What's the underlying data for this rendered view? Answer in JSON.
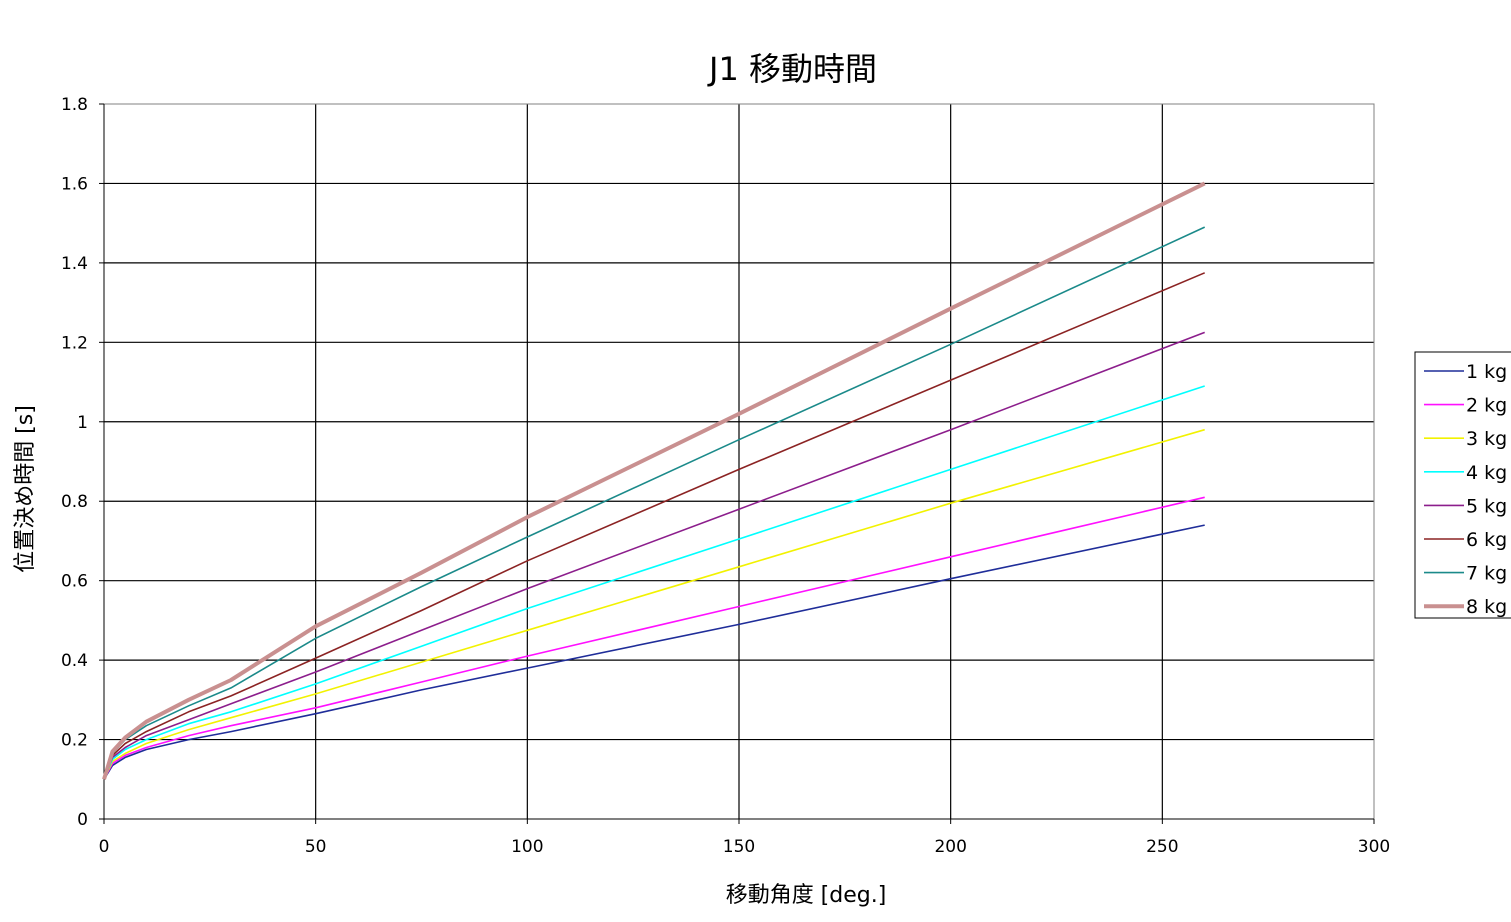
{
  "chart_data": {
    "type": "line",
    "title": "J1 移動時間",
    "xlabel": "移動角度 [deg.]",
    "ylabel": "位置決め時間 [s]",
    "xlim": [
      0,
      300
    ],
    "ylim": [
      0,
      1.8
    ],
    "x_ticks": [
      0,
      50,
      100,
      150,
      200,
      250,
      300
    ],
    "x_tick_labels": [
      "0",
      "50",
      "100",
      "150",
      "200",
      "250",
      "300"
    ],
    "y_ticks": [
      0,
      0.2,
      0.4,
      0.6,
      0.8,
      1.0,
      1.2,
      1.4,
      1.6,
      1.8
    ],
    "y_tick_labels": [
      "0",
      "0.2",
      "0.4",
      "0.6",
      "0.8",
      "1",
      "1.2",
      "1.4",
      "1.6",
      "1.8"
    ],
    "grid": true,
    "legend_position": "right",
    "x": [
      0,
      2,
      5,
      10,
      20,
      30,
      50,
      75,
      100,
      150,
      200,
      260
    ],
    "series": [
      {
        "name": "1 kg",
        "color": "#1f2d99",
        "values": [
          0.1,
          0.135,
          0.155,
          0.175,
          0.2,
          0.22,
          0.265,
          0.325,
          0.38,
          0.49,
          0.605,
          0.74
        ]
      },
      {
        "name": "2 kg",
        "color": "#ff10ff",
        "values": [
          0.1,
          0.14,
          0.16,
          0.18,
          0.21,
          0.235,
          0.28,
          0.345,
          0.41,
          0.535,
          0.66,
          0.81
        ]
      },
      {
        "name": "3 kg",
        "color": "#f2f200",
        "values": [
          0.1,
          0.145,
          0.165,
          0.19,
          0.225,
          0.255,
          0.315,
          0.395,
          0.475,
          0.635,
          0.795,
          0.98
        ]
      },
      {
        "name": "4 kg",
        "color": "#00ffff",
        "values": [
          0.1,
          0.15,
          0.175,
          0.2,
          0.24,
          0.27,
          0.34,
          0.435,
          0.53,
          0.705,
          0.88,
          1.09
        ]
      },
      {
        "name": "5 kg",
        "color": "#8c1e8c",
        "values": [
          0.1,
          0.155,
          0.18,
          0.21,
          0.25,
          0.29,
          0.37,
          0.475,
          0.58,
          0.78,
          0.98,
          1.225
        ]
      },
      {
        "name": "6 kg",
        "color": "#8b2323",
        "values": [
          0.1,
          0.16,
          0.19,
          0.22,
          0.27,
          0.31,
          0.405,
          0.525,
          0.65,
          0.88,
          1.105,
          1.375
        ]
      },
      {
        "name": "7 kg",
        "color": "#1b8a8a",
        "values": [
          0.1,
          0.165,
          0.2,
          0.235,
          0.285,
          0.33,
          0.455,
          0.585,
          0.71,
          0.955,
          1.195,
          1.49
        ]
      },
      {
        "name": "8 kg",
        "color": "#c99090",
        "values": [
          0.1,
          0.17,
          0.205,
          0.245,
          0.3,
          0.35,
          0.485,
          0.62,
          0.76,
          1.02,
          1.285,
          1.6
        ]
      }
    ]
  }
}
